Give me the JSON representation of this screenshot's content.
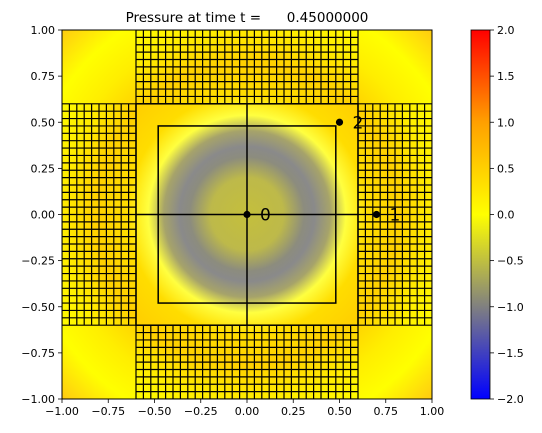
{
  "chart_data": {
    "type": "heatmap",
    "title": "Pressure at time t =      0.45000000",
    "xlabel": "",
    "ylabel": "",
    "xlim": [
      -1.0,
      1.0
    ],
    "ylim": [
      -1.0,
      1.0
    ],
    "x_ticks": [
      -1.0,
      -0.75,
      -0.5,
      -0.25,
      0.0,
      0.25,
      0.5,
      0.75,
      1.0
    ],
    "x_tick_labels": [
      "−1.00",
      "−0.75",
      "−0.50",
      "−0.25",
      "0.00",
      "0.25",
      "0.50",
      "0.75",
      "1.00"
    ],
    "y_ticks": [
      -1.0,
      -0.75,
      -0.5,
      -0.25,
      0.0,
      0.25,
      0.5,
      0.75,
      1.0
    ],
    "y_tick_labels": [
      "−1.00",
      "−0.75",
      "−0.50",
      "−0.25",
      "0.00",
      "0.25",
      "0.50",
      "0.75",
      "1.00"
    ],
    "colorbar": {
      "range": [
        -2.0,
        2.0
      ],
      "ticks": [
        -2.0,
        -1.5,
        -1.0,
        -0.5,
        0.0,
        0.5,
        1.0,
        1.5,
        2.0
      ],
      "tick_labels": [
        "−2.0",
        "−1.5",
        "−1.0",
        "−0.5",
        "0.0",
        "0.5",
        "1.0",
        "1.5",
        "2.0"
      ],
      "colors": [
        "#0000ff",
        "#808080",
        "#ffff00",
        "#ff0000"
      ]
    },
    "gauges": [
      {
        "label": "0",
        "x": 0.0,
        "y": 0.0
      },
      {
        "label": "1",
        "x": 0.7,
        "y": 0.0
      },
      {
        "label": "2",
        "x": 0.5,
        "y": 0.5
      }
    ],
    "refinement_boxes": [
      {
        "x0": -0.48,
        "x1": 0.48,
        "y0": -0.48,
        "y1": 0.48
      },
      {
        "x0": -0.6,
        "x1": 0.6,
        "y0": -0.6,
        "y1": 0.6
      }
    ],
    "fine_grid_regions": [
      {
        "x0": -0.6,
        "x1": 0.6,
        "y0": 0.6,
        "y1": 1.0
      },
      {
        "x0": -0.6,
        "x1": 0.6,
        "y0": -1.0,
        "y1": -0.6
      },
      {
        "x0": -1.0,
        "x1": -0.6,
        "y0": -0.6,
        "y1": 0.6
      },
      {
        "x0": 0.6,
        "x1": 1.0,
        "y0": -0.6,
        "y1": 0.6
      }
    ]
  }
}
